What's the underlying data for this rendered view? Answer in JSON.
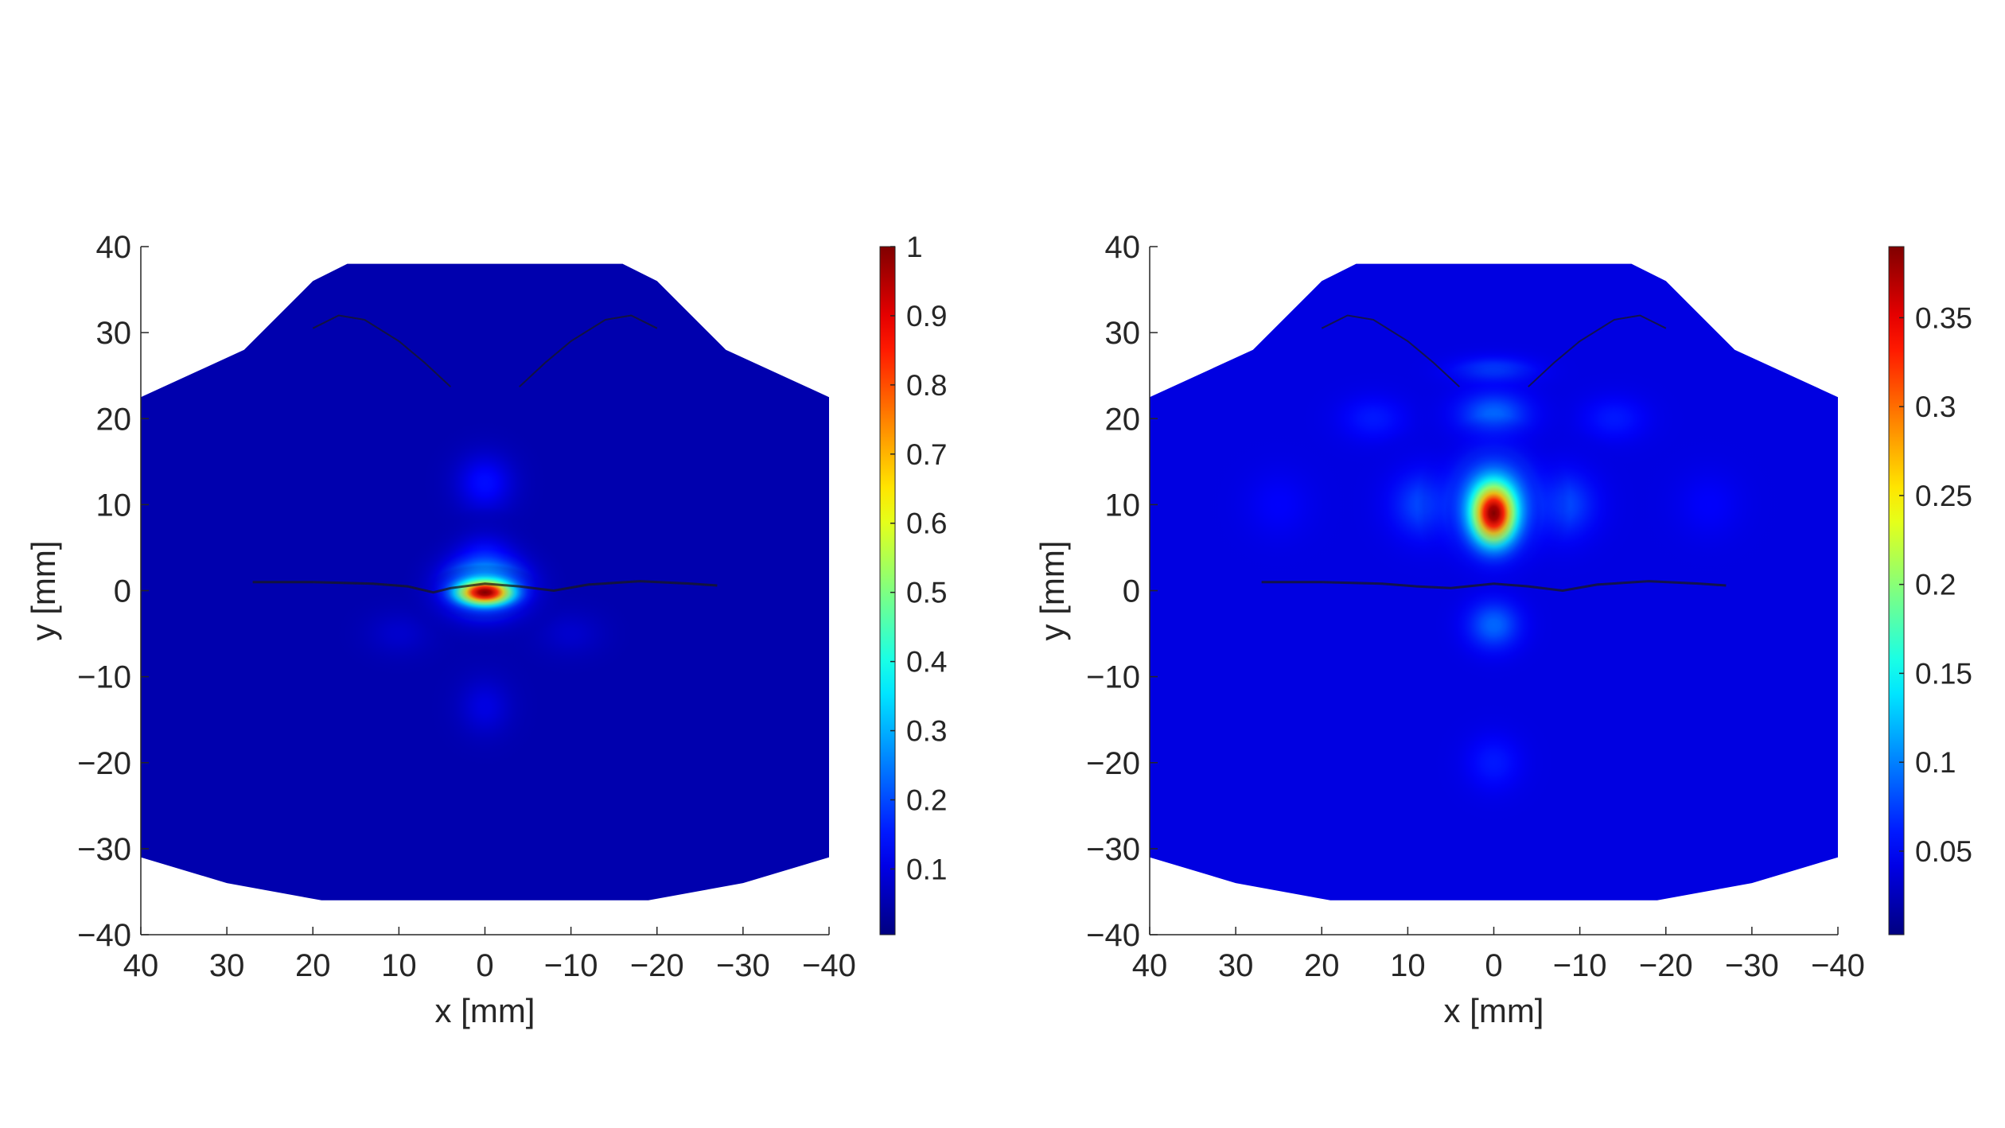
{
  "colors": {
    "background": "#ffffff",
    "axis": "#262626",
    "field_base": "#0a19d6",
    "boundary_line": "#1a1a1a"
  },
  "colormap": "jet",
  "chart_data": [
    {
      "type": "heatmap",
      "title": "",
      "xlabel": "x [mm]",
      "ylabel": "y [mm]",
      "xlim": [
        40,
        -40
      ],
      "ylim": [
        -40,
        40
      ],
      "x_reversed": true,
      "x_ticks": [
        40,
        30,
        20,
        10,
        0,
        -10,
        -20,
        -30,
        -40
      ],
      "x_tick_labels": [
        "40",
        "30",
        "20",
        "10",
        "0",
        "−10",
        "−20",
        "−30",
        "−40"
      ],
      "y_ticks": [
        40,
        30,
        20,
        10,
        0,
        -10,
        -20,
        -30,
        -40
      ],
      "y_tick_labels": [
        "40",
        "30",
        "20",
        "10",
        "0",
        "−10",
        "−20",
        "−30",
        "−40"
      ],
      "grid": false,
      "colorbar": {
        "range": [
          0.005,
          1
        ],
        "ticks": [
          0.1,
          0.2,
          0.3,
          0.4,
          0.5,
          0.6,
          0.7,
          0.8,
          0.9,
          1
        ],
        "tick_labels": [
          "0.1",
          "0.2",
          "0.3",
          "0.4",
          "0.5",
          "0.6",
          "0.7",
          "0.8",
          "0.9",
          "1"
        ],
        "placement": "right"
      },
      "domain_outline": [
        [
          40,
          22.5
        ],
        [
          28,
          28
        ],
        [
          20,
          36
        ],
        [
          16,
          38
        ],
        [
          -16,
          38
        ],
        [
          -20,
          36
        ],
        [
          -28,
          28
        ],
        [
          -40,
          22.5
        ],
        [
          -40,
          -31
        ],
        [
          -30,
          -34
        ],
        [
          -19,
          -36
        ],
        [
          19,
          -36
        ],
        [
          30,
          -34
        ],
        [
          40,
          -31
        ]
      ],
      "base_value": 0.05,
      "hotspots": [
        {
          "x": 0,
          "y": -0.2,
          "value": 1.0,
          "sx": 2.4,
          "sy": 1.1
        },
        {
          "x": 0,
          "y": 0.5,
          "value": 0.45,
          "sx": 3.3,
          "sy": 2.4
        },
        {
          "x": 0,
          "y": 4.0,
          "value": 0.17,
          "sx": 2.4,
          "sy": 1.9
        },
        {
          "x": 0,
          "y": 12.5,
          "value": 0.14,
          "sx": 2.6,
          "sy": 2.6
        },
        {
          "x": 0,
          "y": -13.5,
          "value": 0.1,
          "sx": 2.4,
          "sy": 2.6
        },
        {
          "x": 10,
          "y": -5,
          "value": 0.08,
          "sx": 3,
          "sy": 2
        },
        {
          "x": -10,
          "y": -5,
          "value": 0.08,
          "sx": 3,
          "sy": 2
        }
      ],
      "boundary_curves": [
        {
          "name": "lip-line",
          "points": [
            [
              27,
              1
            ],
            [
              20,
              1
            ],
            [
              13,
              0.8
            ],
            [
              9,
              0.5
            ],
            [
              6,
              -0.2
            ],
            [
              4,
              0.3
            ],
            [
              0,
              0.8
            ],
            [
              -4,
              0.5
            ],
            [
              -8,
              0
            ],
            [
              -12,
              0.7
            ],
            [
              -18,
              1.1
            ],
            [
              -24,
              0.8
            ],
            [
              -27,
              0.6
            ]
          ]
        },
        {
          "name": "left-lobe",
          "points": [
            [
              20,
              30.5
            ],
            [
              17,
              32
            ],
            [
              14,
              31.5
            ],
            [
              10,
              29
            ],
            [
              7,
              26.5
            ],
            [
              4,
              23.7
            ]
          ]
        },
        {
          "name": "right-lobe",
          "points": [
            [
              -4,
              23.7
            ],
            [
              -7,
              26.5
            ],
            [
              -10,
              29
            ],
            [
              -14,
              31.5
            ],
            [
              -17,
              32
            ],
            [
              -20,
              30.5
            ]
          ]
        }
      ]
    },
    {
      "type": "heatmap",
      "title": "",
      "xlabel": "x [mm]",
      "ylabel": "y [mm]",
      "xlim": [
        40,
        -40
      ],
      "ylim": [
        -40,
        40
      ],
      "x_reversed": true,
      "x_ticks": [
        40,
        30,
        20,
        10,
        0,
        -10,
        -20,
        -30,
        -40
      ],
      "x_tick_labels": [
        "40",
        "30",
        "20",
        "10",
        "0",
        "−10",
        "−20",
        "−30",
        "−40"
      ],
      "y_ticks": [
        40,
        30,
        20,
        10,
        0,
        -10,
        -20,
        -30,
        -40
      ],
      "y_tick_labels": [
        "40",
        "30",
        "20",
        "10",
        "0",
        "−10",
        "−20",
        "−30",
        "−40"
      ],
      "grid": false,
      "colorbar": {
        "range": [
          0.003,
          0.39
        ],
        "ticks": [
          0.05,
          0.1,
          0.15,
          0.2,
          0.25,
          0.3,
          0.35
        ],
        "tick_labels": [
          "0.05",
          "0.1",
          "0.15",
          "0.2",
          "0.25",
          "0.3",
          "0.35"
        ],
        "placement": "right"
      },
      "domain_outline": [
        [
          40,
          22.5
        ],
        [
          28,
          28
        ],
        [
          20,
          36
        ],
        [
          16,
          38
        ],
        [
          -16,
          38
        ],
        [
          -20,
          36
        ],
        [
          -28,
          28
        ],
        [
          -40,
          22.5
        ],
        [
          -40,
          -31
        ],
        [
          -30,
          -34
        ],
        [
          -19,
          -36
        ],
        [
          19,
          -36
        ],
        [
          30,
          -34
        ],
        [
          40,
          -31
        ]
      ],
      "base_value": 0.04,
      "hotspots": [
        {
          "x": 0,
          "y": 9.0,
          "value": 0.39,
          "sx": 1.9,
          "sy": 2.6
        },
        {
          "x": 0,
          "y": 10.0,
          "value": 0.2,
          "sx": 3.0,
          "sy": 3.5
        },
        {
          "x": 0,
          "y": 20.5,
          "value": 0.09,
          "sx": 3.2,
          "sy": 2.0
        },
        {
          "x": 0,
          "y": 25.5,
          "value": 0.08,
          "sx": 3.5,
          "sy": 1.2
        },
        {
          "x": 0,
          "y": -4.0,
          "value": 0.09,
          "sx": 2.4,
          "sy": 2.2
        },
        {
          "x": 8,
          "y": 10,
          "value": 0.08,
          "sx": 3,
          "sy": 3
        },
        {
          "x": -8,
          "y": 10,
          "value": 0.08,
          "sx": 3,
          "sy": 3
        },
        {
          "x": 14,
          "y": 20,
          "value": 0.06,
          "sx": 3,
          "sy": 2
        },
        {
          "x": -14,
          "y": 20,
          "value": 0.06,
          "sx": 3,
          "sy": 2
        },
        {
          "x": 0,
          "y": -20,
          "value": 0.06,
          "sx": 2.5,
          "sy": 2.5
        },
        {
          "x": 25,
          "y": 10,
          "value": 0.05,
          "sx": 3,
          "sy": 3
        },
        {
          "x": -25,
          "y": 10,
          "value": 0.05,
          "sx": 3,
          "sy": 3
        }
      ],
      "boundary_curves": [
        {
          "name": "lip-line",
          "points": [
            [
              27,
              1
            ],
            [
              20,
              1
            ],
            [
              13,
              0.8
            ],
            [
              9,
              0.5
            ],
            [
              5,
              0.3
            ],
            [
              0,
              0.8
            ],
            [
              -4,
              0.5
            ],
            [
              -8,
              0
            ],
            [
              -12,
              0.7
            ],
            [
              -18,
              1.1
            ],
            [
              -24,
              0.8
            ],
            [
              -27,
              0.6
            ]
          ]
        },
        {
          "name": "left-lobe",
          "points": [
            [
              20,
              30.5
            ],
            [
              17,
              32
            ],
            [
              14,
              31.5
            ],
            [
              10,
              29
            ],
            [
              7,
              26.5
            ],
            [
              4,
              23.7
            ]
          ]
        },
        {
          "name": "right-lobe",
          "points": [
            [
              -4,
              23.7
            ],
            [
              -7,
              26.5
            ],
            [
              -10,
              29
            ],
            [
              -14,
              31.5
            ],
            [
              -17,
              32
            ],
            [
              -20,
              30.5
            ]
          ]
        }
      ]
    }
  ]
}
